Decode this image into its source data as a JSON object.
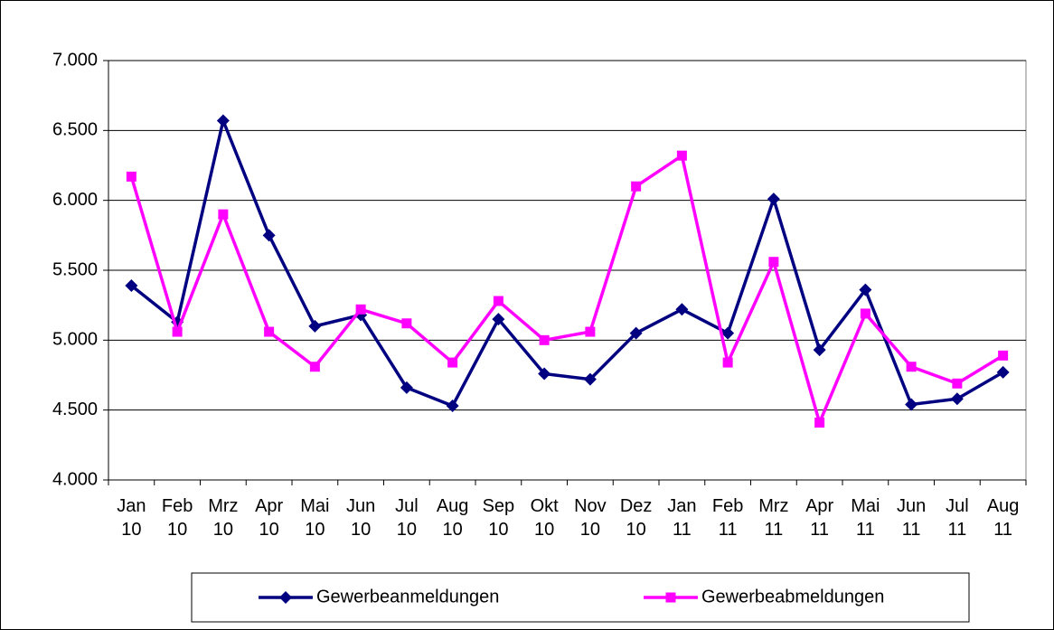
{
  "chart_data": {
    "type": "line",
    "categories": [
      "Jan 10",
      "Feb 10",
      "Mrz 10",
      "Apr 10",
      "Mai 10",
      "Jun 10",
      "Jul 10",
      "Aug 10",
      "Sep 10",
      "Okt 10",
      "Nov 10",
      "Dez 10",
      "Jan 11",
      "Feb 11",
      "Mrz 11",
      "Apr 11",
      "Mai 11",
      "Jun 11",
      "Jul 11",
      "Aug 11"
    ],
    "series": [
      {
        "name": "Gewerbeanmeldungen",
        "color": "#000080",
        "marker": "diamond",
        "values": [
          5390,
          5130,
          6570,
          5750,
          5100,
          5180,
          4660,
          4530,
          5150,
          4760,
          4720,
          5050,
          5220,
          5050,
          6010,
          4930,
          5360,
          4540,
          4580,
          4770
        ]
      },
      {
        "name": "Gewerbeabmeldungen",
        "color": "#ff00ff",
        "marker": "square",
        "values": [
          6170,
          5060,
          5900,
          5060,
          4810,
          5220,
          5120,
          4840,
          5280,
          5000,
          5060,
          6100,
          6320,
          4840,
          5560,
          4410,
          5190,
          4810,
          4690,
          4890
        ]
      }
    ],
    "ylim": [
      4000,
      7000
    ],
    "yticks": [
      {
        "value": 4000,
        "label": "4.000"
      },
      {
        "value": 4500,
        "label": "4.500"
      },
      {
        "value": 5000,
        "label": "5.000"
      },
      {
        "value": 5500,
        "label": "5.500"
      },
      {
        "value": 6000,
        "label": "6.000"
      },
      {
        "value": 6500,
        "label": "6.500"
      },
      {
        "value": 7000,
        "label": "7.000"
      }
    ],
    "grid": true,
    "legend": "bottom"
  }
}
